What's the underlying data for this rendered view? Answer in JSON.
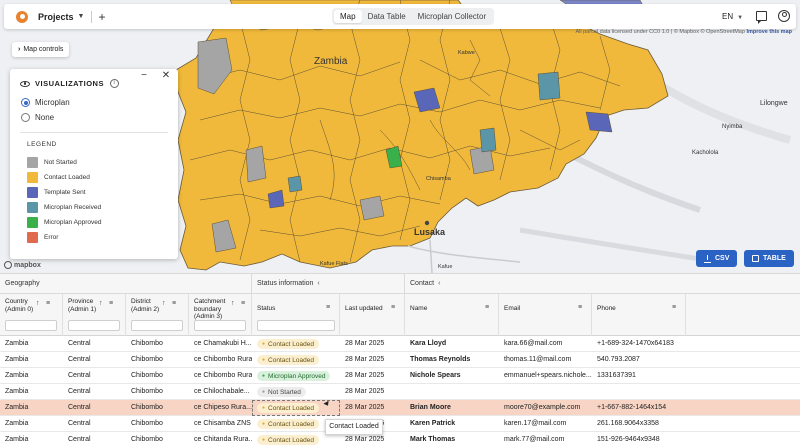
{
  "topbar": {
    "projects_label": "Projects",
    "tabs": [
      {
        "label": "Map",
        "active": true
      },
      {
        "label": "Data Table",
        "active": false
      },
      {
        "label": "Microplan Collector",
        "active": false
      }
    ],
    "language": "EN"
  },
  "map": {
    "labels": {
      "zambia": "Zambia",
      "lusaka": "Lusaka",
      "kafue_flats": "Kafue Flats",
      "kabwe": "Kabwe",
      "chisamba": "Chisamba",
      "kafue": "Kafue",
      "lilongwe": "Lilongwe",
      "nyimba": "Nyimba",
      "kacholola": "Kacholola"
    },
    "attribution": "All parcel data licensed under CC0 1.0 | © Mapbox © OpenStreetMap",
    "attribution_link": "Improve this map",
    "logo": "mapbox",
    "region_color": "#f0b93b",
    "water_color": "#7a86c8"
  },
  "map_controls": {
    "label": "Map controls"
  },
  "visualizations": {
    "title": "VISUALIZATIONS",
    "options": [
      {
        "label": "Microplan",
        "selected": true
      },
      {
        "label": "None",
        "selected": false
      }
    ],
    "legend_title": "LEGEND",
    "legend": [
      {
        "label": "Not Started",
        "color": "#a5a5a5"
      },
      {
        "label": "Contact Loaded",
        "color": "#f0b93b"
      },
      {
        "label": "Template Sent",
        "color": "#5a67b8"
      },
      {
        "label": "Microplan Received",
        "color": "#5b95a8"
      },
      {
        "label": "Microplan Approved",
        "color": "#39b04a"
      },
      {
        "label": "Error",
        "color": "#e06a4e"
      }
    ]
  },
  "buttons": {
    "csv": "CSV",
    "table": "TABLE"
  },
  "grid": {
    "groups": {
      "geography": "Geography",
      "status": "Status information",
      "contact": "Contact"
    },
    "columns": {
      "country": "Country (Admin 0)",
      "province": "Province (Admin 1)",
      "district": "District (Admin 2)",
      "catchment": "Catchment boundary (Admin 3)",
      "status": "Status",
      "last_updated": "Last updated",
      "name": "Name",
      "email": "Email",
      "phone": "Phone"
    },
    "rows": [
      {
        "country": "Zambia",
        "province": "Central",
        "district": "Chibombo",
        "catchment": "ce Chamakubi H...",
        "status": "Contact Loaded",
        "status_kind": "loaded",
        "updated": "28 Mar 2025",
        "name": "Kara Lloyd",
        "email": "kara.66@mail.com",
        "phone": "+1-689-324-1470x64183"
      },
      {
        "country": "Zambia",
        "province": "Central",
        "district": "Chibombo",
        "catchment": "ce Chibombo Rura...",
        "status": "Contact Loaded",
        "status_kind": "loaded",
        "updated": "28 Mar 2025",
        "name": "Thomas Reynolds",
        "email": "thomas.11@mail.com",
        "phone": "540.793.2087"
      },
      {
        "country": "Zambia",
        "province": "Central",
        "district": "Chibombo",
        "catchment": "ce Chibombo Rura...",
        "status": "Microplan Approved",
        "status_kind": "approved",
        "updated": "28 Mar 2025",
        "name": "Nichole Spears",
        "email": "emmanuel+spears.nichole...",
        "phone": "1331637391"
      },
      {
        "country": "Zambia",
        "province": "Central",
        "district": "Chibombo",
        "catchment": "ce Chilochabale...",
        "status": "Not Started",
        "status_kind": "notstarted",
        "updated": "28 Mar 2025",
        "name": "",
        "email": "",
        "phone": ""
      },
      {
        "country": "Zambia",
        "province": "Central",
        "district": "Chibombo",
        "catchment": "ce Chipeso Rura...",
        "status": "Contact Loaded",
        "status_kind": "loaded",
        "updated": "28 Mar 2025",
        "name": "Brian Moore",
        "email": "moore70@example.com",
        "phone": "+1-667-882-1464x154"
      },
      {
        "country": "Zambia",
        "province": "Central",
        "district": "Chibombo",
        "catchment": "ce Chisamba ZNS",
        "status": "Contact Loaded",
        "status_kind": "loaded",
        "updated": "28 Mar 2025",
        "name": "Karen Patrick",
        "email": "karen.17@mail.com",
        "phone": "261.168.9064x3358"
      },
      {
        "country": "Zambia",
        "province": "Central",
        "district": "Chibombo",
        "catchment": "ce Chitanda Rura...",
        "status": "Contact Loaded",
        "status_kind": "loaded",
        "updated": "28 Mar 2025",
        "name": "Mark Thomas",
        "email": "mark.77@mail.com",
        "phone": "151-926-9464x9348"
      }
    ],
    "tooltip": "Contact Loaded"
  }
}
